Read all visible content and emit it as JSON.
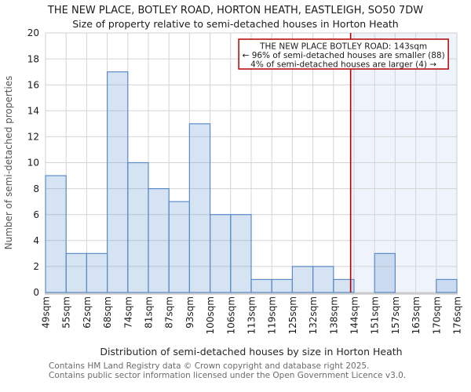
{
  "page": {
    "title": "THE NEW PLACE, BOTLEY ROAD, HORTON HEATH, EASTLEIGH, SO50 7DW",
    "subtitle": "Size of property relative to semi-detached houses in Horton Heath"
  },
  "chart_data": {
    "type": "bar",
    "title": "THE NEW PLACE, BOTLEY ROAD, HORTON HEATH, EASTLEIGH, SO50 7DW",
    "subtitle": "Size of property relative to semi-detached houses in Horton Heath",
    "xlabel": "Distribution of semi-detached houses by size in Horton Heath",
    "ylabel": "Number of semi-detached properties",
    "ylim": [
      0,
      20
    ],
    "ytick_step": 2,
    "grid": true,
    "legend": "none",
    "bin_edges_sqm": [
      49,
      55,
      62,
      68,
      74,
      81,
      87,
      93,
      100,
      106,
      113,
      119,
      125,
      132,
      138,
      144,
      151,
      157,
      163,
      170,
      176
    ],
    "tick_labels": [
      "49sqm",
      "55sqm",
      "62sqm",
      "68sqm",
      "74sqm",
      "81sqm",
      "87sqm",
      "93sqm",
      "100sqm",
      "106sqm",
      "113sqm",
      "119sqm",
      "125sqm",
      "132sqm",
      "138sqm",
      "144sqm",
      "151sqm",
      "157sqm",
      "163sqm",
      "170sqm",
      "176sqm"
    ],
    "values": [
      9,
      3,
      3,
      17,
      10,
      8,
      7,
      13,
      6,
      6,
      1,
      1,
      2,
      2,
      1,
      0,
      3,
      0,
      0,
      1
    ],
    "marker": {
      "sqm": 143,
      "annotation_title": "THE NEW PLACE BOTLEY ROAD: 143sqm",
      "annotation_smaller": "← 96% of semi-detached houses are smaller (88)",
      "annotation_larger": "4% of semi-detached houses are larger (4) →"
    },
    "colors": {
      "bar_fill": "#6d9ad0",
      "bar_fill_opacity": "0.28",
      "bar_stroke": "#5b8bc8",
      "grid": "#d4d4d4",
      "spine": "#cfcfcf",
      "bottom_spine": "#cccccc",
      "marker_line": "#b40000",
      "annotation_border": "#b40000",
      "annotation_bg": "#ffffff",
      "shaded_region": "#eff3fb",
      "tick_text": "#1a1a1a",
      "xlabel_text": "#262626",
      "ylabel_text": "#555555"
    }
  },
  "footer": {
    "line1": "Contains HM Land Registry data © Crown copyright and database right 2025.",
    "line2": "Contains public sector information licensed under the Open Government Licence v3.0."
  }
}
